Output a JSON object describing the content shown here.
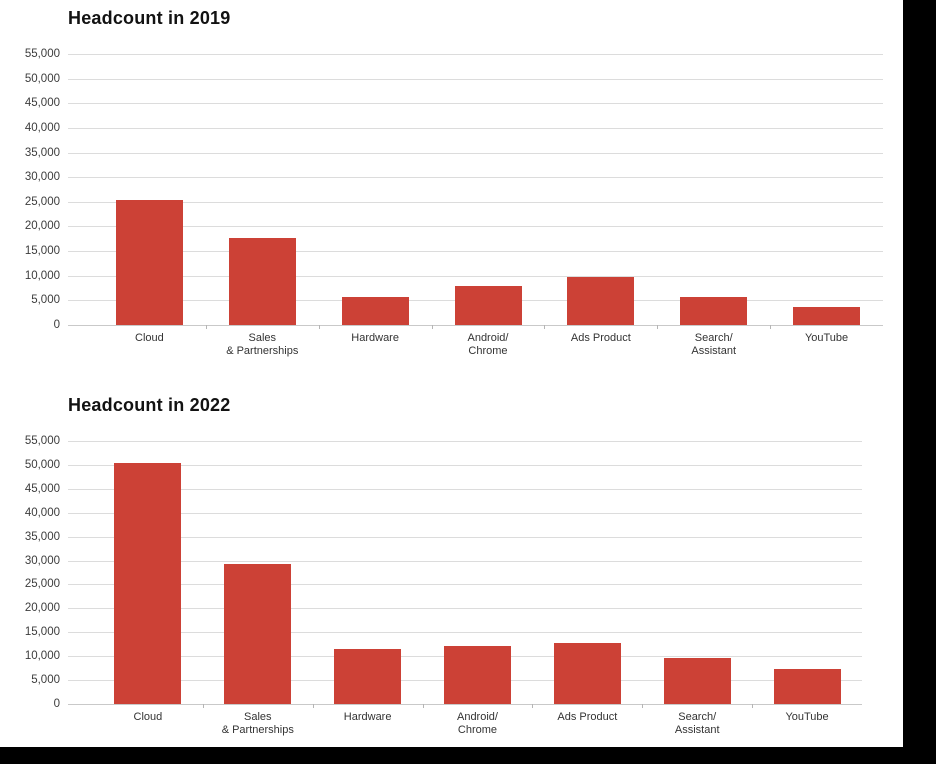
{
  "colors": {
    "background": "#ffffff",
    "bar": "#cc4136",
    "gridline": "#dcdcdc",
    "axis_line": "#c9c9c9",
    "tick_mark": "#b5b5b5",
    "title_text": "#121212",
    "axis_label_text": "#3c3c3c",
    "category_label_text": "#333333",
    "frame": "#000000"
  },
  "chart_data": [
    {
      "type": "bar",
      "title": "Headcount in 2019",
      "categories": [
        [
          "Cloud"
        ],
        [
          "Sales",
          "& Partnerships"
        ],
        [
          "Hardware"
        ],
        [
          "Android/",
          "Chrome"
        ],
        [
          "Ads Product"
        ],
        [
          "Search/",
          "Assistant"
        ],
        [
          "YouTube"
        ]
      ],
      "values": [
        25400,
        17600,
        5700,
        7900,
        9800,
        5700,
        3600
      ],
      "y_ticks": [
        "55,000",
        "50,000",
        "45,000",
        "40,000",
        "35,000",
        "30,000",
        "25,000",
        "20,000",
        "15,000",
        "10,000",
        "5,000",
        "0"
      ],
      "ylim": [
        0,
        55000
      ],
      "grid": true,
      "legend": "none",
      "xlabel": "",
      "ylabel": ""
    },
    {
      "type": "bar",
      "title": "Headcount in 2022",
      "categories": [
        [
          "Cloud"
        ],
        [
          "Sales",
          "& Partnerships"
        ],
        [
          "Hardware"
        ],
        [
          "Android/",
          "Chrome"
        ],
        [
          "Ads Product"
        ],
        [
          "Search/",
          "Assistant"
        ],
        [
          "YouTube"
        ]
      ],
      "values": [
        50300,
        29300,
        11500,
        12100,
        12800,
        9600,
        7300
      ],
      "y_ticks": [
        "55,000",
        "50,000",
        "45,000",
        "40,000",
        "35,000",
        "30,000",
        "25,000",
        "20,000",
        "15,000",
        "10,000",
        "5,000",
        "0"
      ],
      "ylim": [
        0,
        55000
      ],
      "grid": true,
      "legend": "none",
      "xlabel": "",
      "ylabel": ""
    }
  ]
}
